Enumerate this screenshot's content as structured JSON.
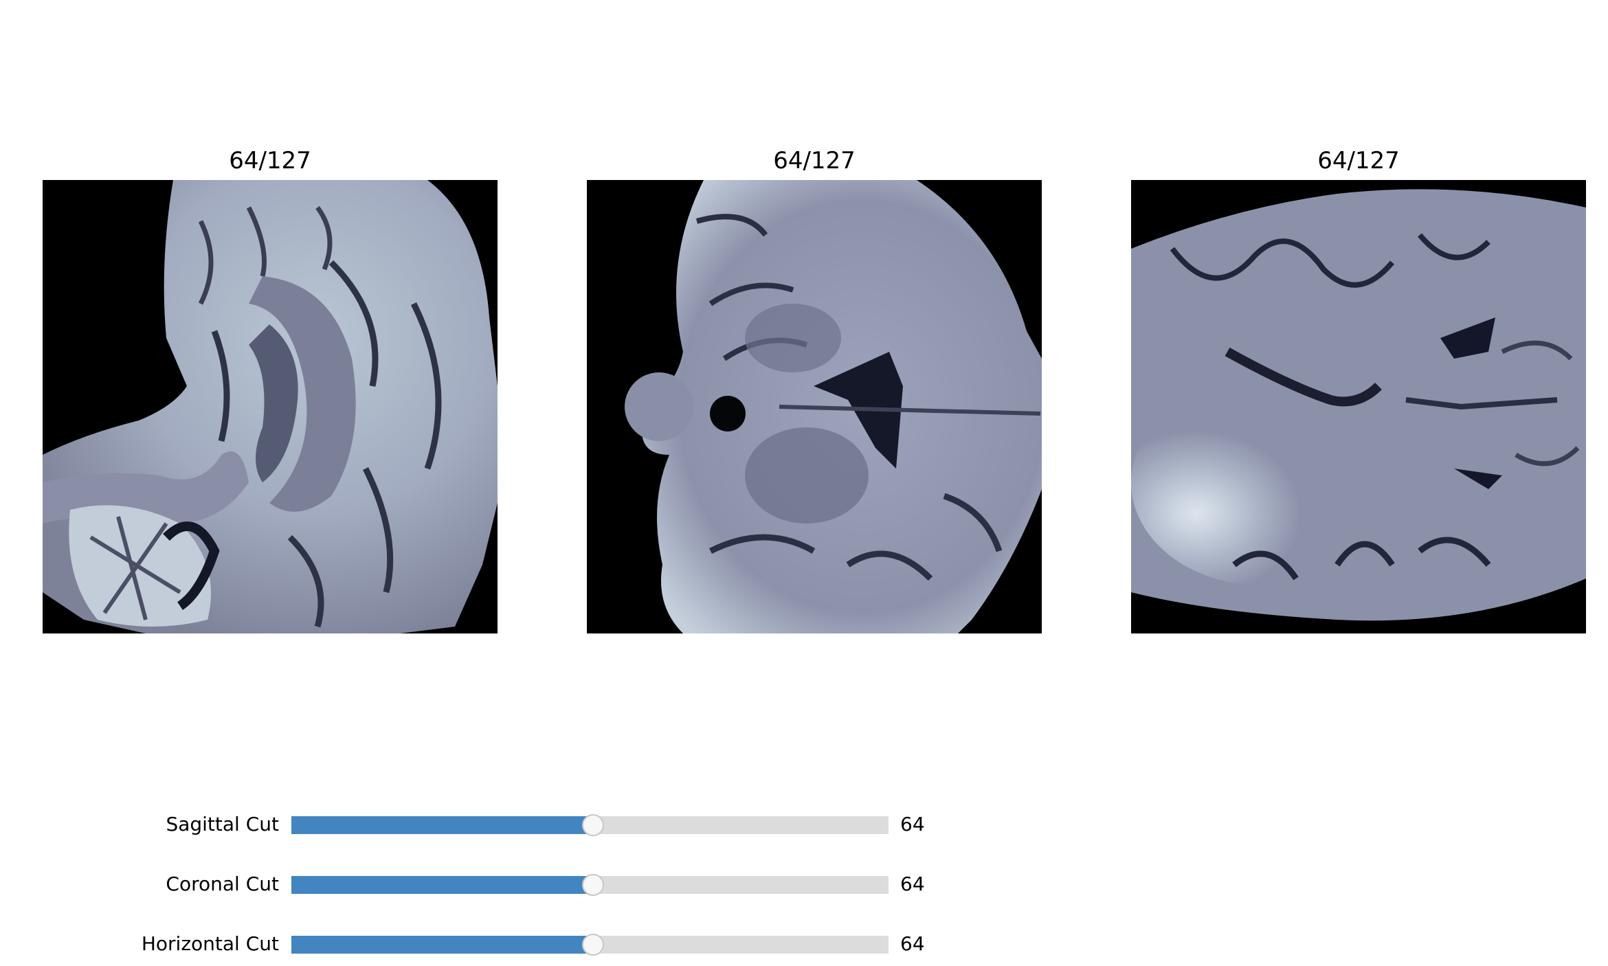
{
  "panels": [
    {
      "title": "64/127",
      "view": "sagittal"
    },
    {
      "title": "64/127",
      "view": "coronal"
    },
    {
      "title": "64/127",
      "view": "horizontal"
    }
  ],
  "colormap": {
    "background": "#000000",
    "tissue": "#8e93ab",
    "bright": "#d7e2ea",
    "dark": "#1e2233"
  },
  "sliders": [
    {
      "label": "Sagittal Cut",
      "value": "64",
      "fraction": 0.5039
    },
    {
      "label": "Coronal Cut",
      "value": "64",
      "fraction": 0.5039
    },
    {
      "label": "Horizontal Cut",
      "value": "64",
      "fraction": 0.5039
    }
  ],
  "slider_colors": {
    "fill": "#4285c0",
    "track": "#dcdcdc"
  }
}
